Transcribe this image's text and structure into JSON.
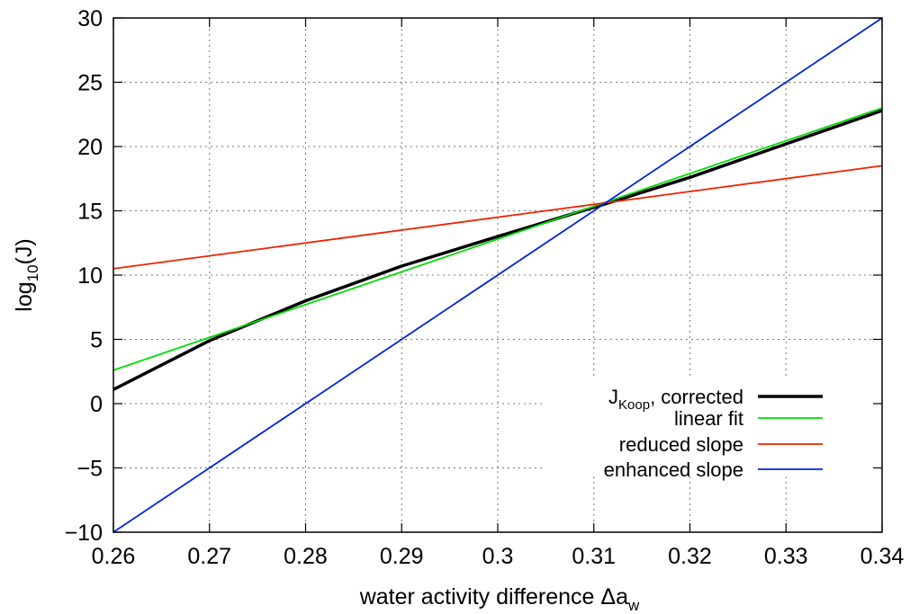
{
  "chart_data": {
    "type": "line",
    "title": "",
    "xlabel_main": "water activity difference Δa",
    "xlabel_sub": "w",
    "ylabel_pre": "log",
    "ylabel_sub": "10",
    "ylabel_post": "(J)",
    "xlim": [
      0.26,
      0.34
    ],
    "ylim": [
      -10,
      30
    ],
    "x_ticks": [
      0.26,
      0.27,
      0.28,
      0.29,
      0.3,
      0.31,
      0.32,
      0.33,
      0.34
    ],
    "x_tick_labels": [
      "0.26",
      "0.27",
      "0.28",
      "0.29",
      "0.3",
      "0.31",
      "0.32",
      "0.33",
      "0.34"
    ],
    "y_ticks": [
      -10,
      -5,
      0,
      5,
      10,
      15,
      20,
      25,
      30
    ],
    "y_tick_labels": [
      "−10",
      "−5",
      "0",
      "5",
      "10",
      "15",
      "20",
      "25",
      "30"
    ],
    "grid": true,
    "legend_position": "bottom-right",
    "series": [
      {
        "name": "J",
        "name_sub": "Koop",
        "name_post": ", corrected",
        "color": "#000000",
        "x": [
          0.26,
          0.27,
          0.28,
          0.29,
          0.3,
          0.311,
          0.32,
          0.33,
          0.34
        ],
        "y": [
          1.1,
          4.9,
          8.0,
          10.7,
          13.0,
          15.5,
          17.6,
          20.2,
          22.8
        ]
      },
      {
        "name": "linear fit",
        "color": "#00dd00",
        "x": [
          0.26,
          0.34
        ],
        "y": [
          2.6,
          23.0
        ]
      },
      {
        "name": "reduced slope",
        "color": "#ee2200",
        "x": [
          0.26,
          0.34
        ],
        "y": [
          10.5,
          18.5
        ]
      },
      {
        "name": "enhanced slope",
        "color": "#0022dd",
        "x": [
          0.26,
          0.34
        ],
        "y": [
          -10,
          30
        ]
      }
    ]
  }
}
